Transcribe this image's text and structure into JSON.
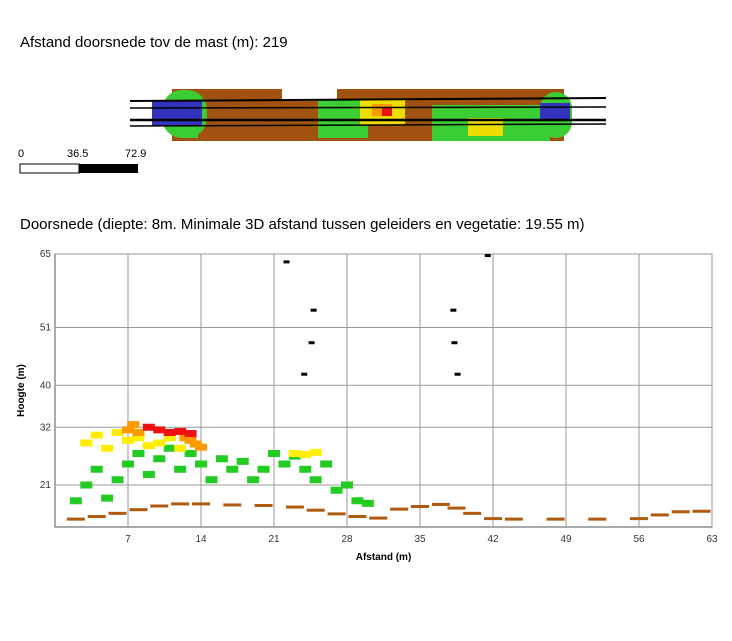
{
  "header": {
    "top_title": "Afstand doorsnede tov de mast (m): 219",
    "section_title": "Doorsnede (diepte: 8m. Minimale 3D afstand tussen geleiders en vegetatie: 19.55 m)"
  },
  "scale_bar": {
    "labels": [
      "0",
      "36.5",
      "72.9"
    ]
  },
  "colors": {
    "ground": "#b05a10",
    "veg_low": "#22cc22",
    "veg_mid": "#ffee00",
    "veg_high": "#ff9900",
    "veg_top": "#ee1111",
    "conductor": "#000000",
    "mast": "#3333bb"
  },
  "chart_data": {
    "type": "scatter",
    "xlabel": "Afstand (m)",
    "ylabel": "Hoogte (m)",
    "xlim": [
      0,
      63
    ],
    "ylim": [
      13,
      65
    ],
    "x_ticks": [
      "7",
      "14",
      "21",
      "28",
      "35",
      "42",
      "49",
      "56",
      "63"
    ],
    "y_ticks": [
      "21",
      "32",
      "40",
      "51",
      "65"
    ],
    "grid": true,
    "series": [
      {
        "class": "conductor",
        "color": "#000000",
        "points": [
          [
            22.2,
            63.5
          ],
          [
            24.8,
            54.3
          ],
          [
            24.6,
            48.1
          ],
          [
            23.9,
            42.1
          ],
          [
            38.2,
            54.3
          ],
          [
            38.3,
            48.1
          ],
          [
            38.6,
            42.1
          ],
          [
            41.5,
            64.7
          ]
        ]
      },
      {
        "class": "ground",
        "color": "#b05a10",
        "points": [
          [
            2,
            14.5
          ],
          [
            4,
            15
          ],
          [
            6,
            15.6
          ],
          [
            8,
            16.3
          ],
          [
            10,
            17
          ],
          [
            12,
            17.4
          ],
          [
            14,
            17.4
          ],
          [
            17,
            17.2
          ],
          [
            20,
            17.1
          ],
          [
            23,
            16.8
          ],
          [
            25,
            16.2
          ],
          [
            27,
            15.5
          ],
          [
            29,
            15
          ],
          [
            31,
            14.7
          ],
          [
            33,
            16.4
          ],
          [
            35,
            16.9
          ],
          [
            37,
            17.3
          ],
          [
            38.5,
            16.6
          ],
          [
            40,
            15.6
          ],
          [
            42,
            14.6
          ],
          [
            44,
            14.5
          ],
          [
            48,
            14.5
          ],
          [
            52,
            14.5
          ],
          [
            56,
            14.6
          ],
          [
            58,
            15.3
          ],
          [
            60,
            15.9
          ],
          [
            62,
            16
          ]
        ]
      },
      {
        "class": "vegetation",
        "color": "#22cc22",
        "points": [
          [
            2,
            18
          ],
          [
            3,
            21
          ],
          [
            4,
            24
          ],
          [
            5,
            18.5
          ],
          [
            6,
            22
          ],
          [
            7,
            25
          ],
          [
            8,
            27
          ],
          [
            9,
            23
          ],
          [
            10,
            26
          ],
          [
            11,
            28
          ],
          [
            12,
            24
          ],
          [
            13,
            27
          ],
          [
            14,
            25
          ],
          [
            15,
            22
          ],
          [
            16,
            26
          ],
          [
            17,
            24
          ],
          [
            18,
            25.5
          ],
          [
            19,
            22
          ],
          [
            20,
            24
          ],
          [
            21,
            27
          ],
          [
            22,
            25
          ],
          [
            23,
            26.5
          ],
          [
            24,
            24
          ],
          [
            25,
            22
          ],
          [
            26,
            25
          ],
          [
            27,
            20
          ],
          [
            28,
            21
          ],
          [
            29,
            18
          ],
          [
            30,
            17.5
          ]
        ]
      },
      {
        "class": "vegetation-mid",
        "color": "#ffee00",
        "points": [
          [
            3,
            29
          ],
          [
            4,
            30.5
          ],
          [
            5,
            28
          ],
          [
            6,
            31
          ],
          [
            7,
            29.5
          ],
          [
            8,
            30
          ],
          [
            9,
            28.5
          ],
          [
            10,
            29
          ],
          [
            11,
            30
          ],
          [
            12,
            28
          ],
          [
            23,
            27
          ],
          [
            24,
            26.8
          ],
          [
            25,
            27.2
          ]
        ]
      },
      {
        "class": "vegetation-high",
        "color": "#ff9900",
        "points": [
          [
            7,
            31.5
          ],
          [
            7.5,
            32.5
          ],
          [
            8,
            31
          ],
          [
            12.5,
            30
          ],
          [
            13,
            29.5
          ],
          [
            13.5,
            28.8
          ],
          [
            14,
            28.2
          ]
        ]
      },
      {
        "class": "vegetation-top",
        "color": "#ee1111",
        "points": [
          [
            9,
            32
          ],
          [
            10,
            31.5
          ],
          [
            11,
            31
          ],
          [
            12,
            31.2
          ],
          [
            13,
            30.8
          ]
        ]
      }
    ]
  }
}
